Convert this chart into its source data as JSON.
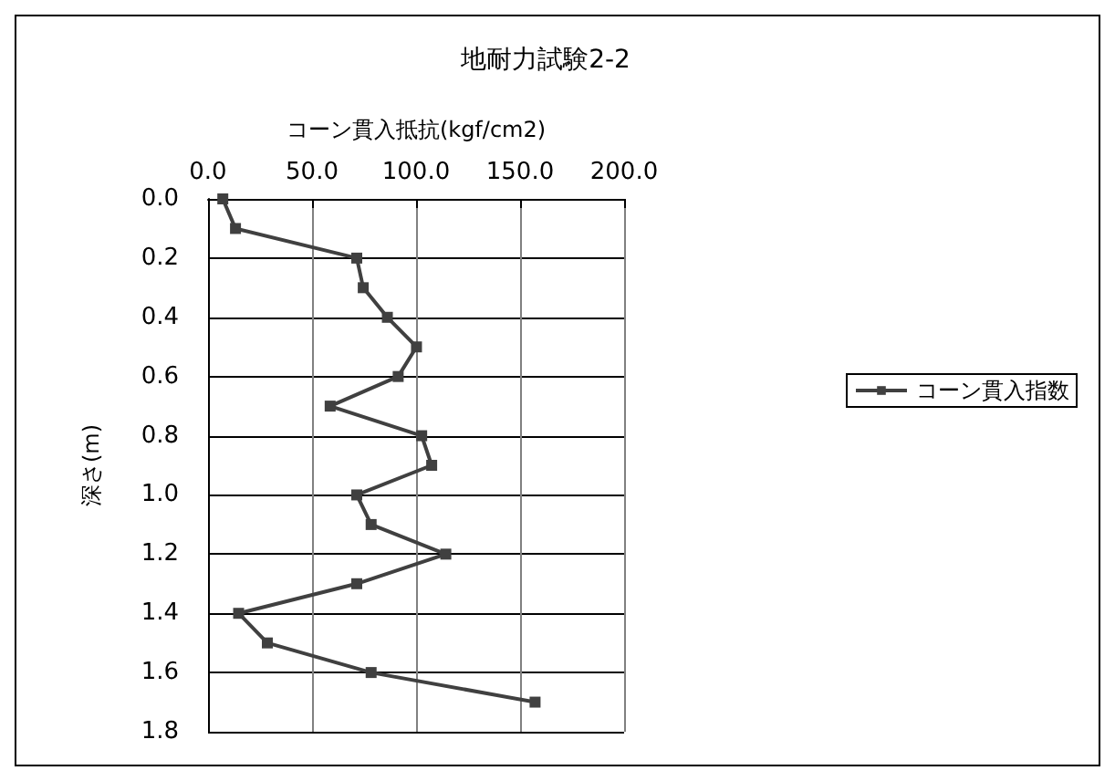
{
  "chart_data": {
    "type": "line",
    "title": "地耐力試験2-2",
    "xlabel": "コーン貫入抵抗(kgf/cm2)",
    "ylabel": "深さ(m)",
    "series": [
      {
        "name": "コーン貫入指数",
        "color": "#404040",
        "x": [
          7.1,
          13.2,
          71.5,
          74.6,
          86.2,
          100.2,
          91.4,
          58.7,
          102.7,
          107.5,
          71.5,
          78.4,
          114.3,
          71.5,
          14.7,
          28.5,
          78.4,
          157.2
        ],
        "values": [
          0,
          0.1,
          0.2,
          0.3,
          0.4,
          0.5,
          0.6,
          0.7,
          0.8,
          0.9,
          1.0,
          1.1,
          1.2,
          1.3,
          1.4,
          1.5,
          1.6,
          1.7
        ]
      }
    ],
    "xlim": [
      0,
      200
    ],
    "xticks": [
      {
        "value": 0,
        "label": "0.0"
      },
      {
        "value": 50,
        "label": "50.0"
      },
      {
        "value": 100,
        "label": "100.0"
      },
      {
        "value": 150,
        "label": "150.0"
      },
      {
        "value": 200,
        "label": "200.0"
      }
    ],
    "ylim": [
      1.8,
      0
    ],
    "yticks": [
      {
        "value": 0,
        "label": "0.0"
      },
      0.2,
      0.4,
      0.6,
      0.8,
      {
        "value": 1,
        "label": "1.0"
      },
      1.2,
      1.4,
      1.6,
      1.8
    ],
    "grid": true,
    "legend": "right",
    "marker": "square",
    "line_style": "solid"
  }
}
